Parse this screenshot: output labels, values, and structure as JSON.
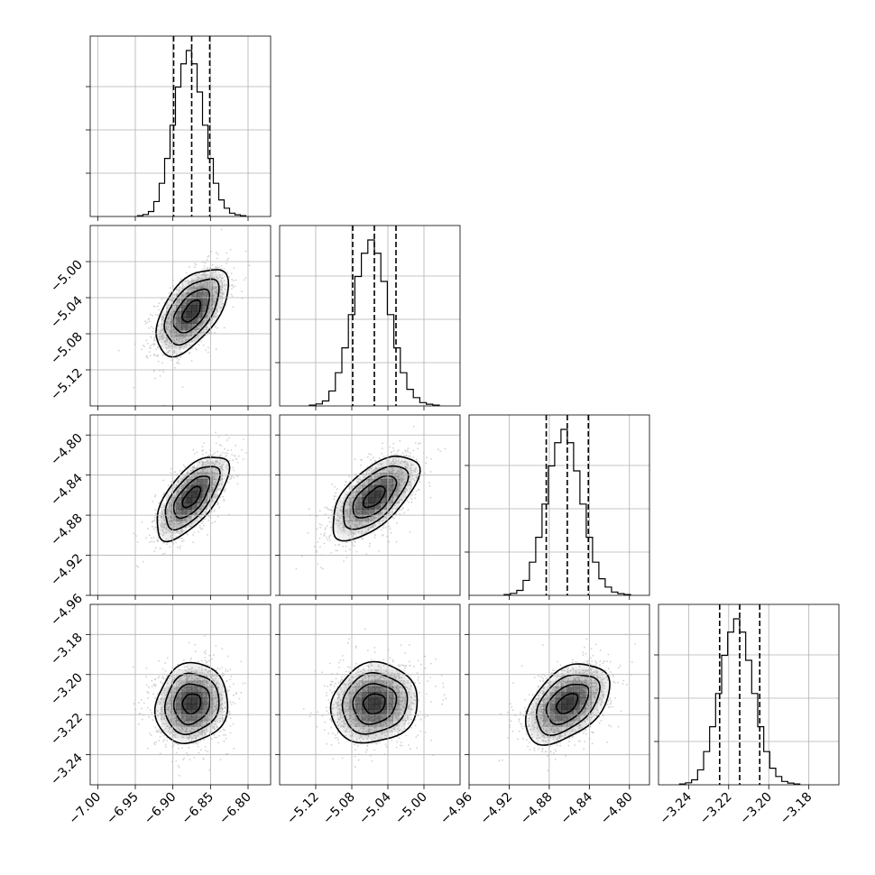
{
  "chart_data": {
    "type": "corner",
    "grid": true,
    "parameters": [
      {
        "range": [
          -7.01,
          -6.77
        ],
        "ticks": [
          -7.0,
          -6.95,
          -6.9,
          -6.85,
          -6.8
        ],
        "tick_labels": [
          "−7.00",
          "−6.95",
          "−6.90",
          "−6.85",
          "−6.80"
        ],
        "quantiles": [
          -6.899,
          -6.875,
          -6.851
        ],
        "hist": [
          0.005,
          0.012,
          0.03,
          0.09,
          0.2,
          0.35,
          0.55,
          0.78,
          0.92,
          1.0,
          0.92,
          0.75,
          0.55,
          0.35,
          0.2,
          0.1,
          0.05,
          0.02,
          0.01,
          0.005
        ]
      },
      {
        "range": [
          -5.16,
          -4.96
        ],
        "ticks": [
          -5.12,
          -5.08,
          -5.04,
          -5.0
        ],
        "tick_labels": [
          "−5.12",
          "−5.08",
          "−5.04",
          "−5.00"
        ],
        "quantiles": [
          -5.079,
          -5.055,
          -5.031
        ],
        "hist": [
          0.005,
          0.012,
          0.03,
          0.09,
          0.2,
          0.35,
          0.55,
          0.78,
          0.92,
          1.0,
          0.92,
          0.75,
          0.55,
          0.35,
          0.2,
          0.1,
          0.05,
          0.02,
          0.01,
          0.005
        ]
      },
      {
        "range": [
          -4.96,
          -4.78
        ],
        "ticks": [
          -4.96,
          -4.92,
          -4.88,
          -4.84,
          -4.8
        ],
        "tick_labels": [
          "−4.96",
          "−4.92",
          "−4.88",
          "−4.84",
          "−4.80"
        ],
        "quantiles": [
          -4.883,
          -4.862,
          -4.841
        ],
        "hist": [
          0.005,
          0.012,
          0.03,
          0.09,
          0.2,
          0.35,
          0.55,
          0.78,
          0.92,
          1.0,
          0.92,
          0.75,
          0.55,
          0.35,
          0.2,
          0.1,
          0.05,
          0.02,
          0.01,
          0.005
        ]
      },
      {
        "range": [
          -3.255,
          -3.165
        ],
        "ticks": [
          -3.24,
          -3.22,
          -3.2,
          -3.18
        ],
        "tick_labels": [
          "−3.24",
          "−3.22",
          "−3.20",
          "−3.18"
        ],
        "quantiles": [
          -3.2245,
          -3.2145,
          -3.2045
        ],
        "hist": [
          0.005,
          0.012,
          0.03,
          0.09,
          0.2,
          0.35,
          0.55,
          0.78,
          0.92,
          1.0,
          0.92,
          0.75,
          0.55,
          0.35,
          0.2,
          0.1,
          0.05,
          0.02,
          0.01,
          0.005
        ]
      }
    ],
    "pairs": [
      {
        "x": 0,
        "y": 1,
        "center": [
          -6.875,
          -5.055
        ],
        "sd": [
          0.024,
          0.024
        ],
        "rho": 0.55
      },
      {
        "x": 0,
        "y": 2,
        "center": [
          -6.875,
          -4.862
        ],
        "sd": [
          0.024,
          0.021
        ],
        "rho": 0.65
      },
      {
        "x": 1,
        "y": 2,
        "center": [
          -5.055,
          -4.862
        ],
        "sd": [
          0.024,
          0.021
        ],
        "rho": 0.62
      },
      {
        "x": 0,
        "y": 3,
        "center": [
          -6.875,
          -3.2145
        ],
        "sd": [
          0.024,
          0.01
        ],
        "rho": 0.1
      },
      {
        "x": 1,
        "y": 3,
        "center": [
          -5.055,
          -3.2145
        ],
        "sd": [
          0.024,
          0.01
        ],
        "rho": 0.1
      },
      {
        "x": 2,
        "y": 3,
        "center": [
          -4.862,
          -3.2145
        ],
        "sd": [
          0.021,
          0.01
        ],
        "rho": 0.45
      }
    ],
    "contour_levels_sigma": [
      0.5,
      1.0,
      1.5,
      2.0
    ],
    "colors": {
      "line": "#000000",
      "grid": "#b0b0b0",
      "points": "#9a9a9a",
      "density": "#000000"
    }
  }
}
